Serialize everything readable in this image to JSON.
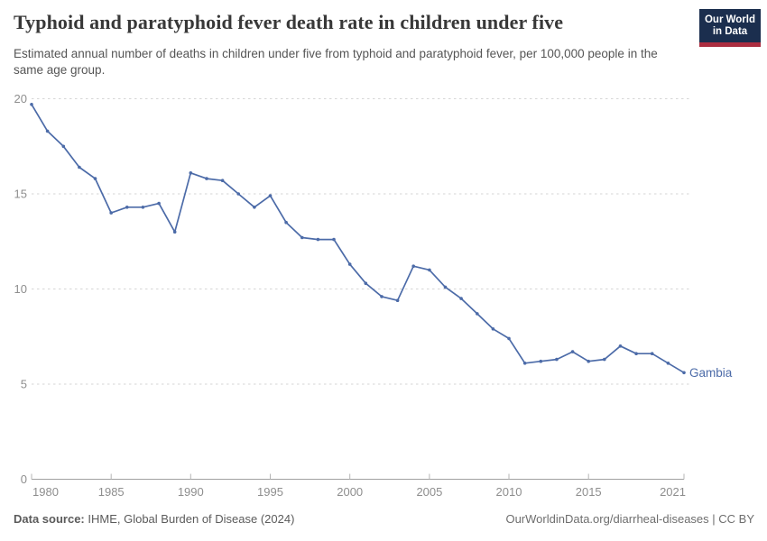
{
  "header": {
    "title": "Typhoid and paratyphoid fever death rate in children under five",
    "subtitle": "Estimated annual number of deaths in children under five from typhoid and paratyphoid fever, per 100,000 people in the same age group.",
    "logo_line1": "Our World",
    "logo_line2": "in Data",
    "logo_bg_color": "#1b2e4e",
    "logo_accent_color": "#ab2d40"
  },
  "chart_data": {
    "type": "line",
    "title": "Typhoid and paratyphoid fever death rate in children under five",
    "entity_label": "Gambia",
    "line_color": "#4c6ba8",
    "axis_text_color": "#8e8e8e",
    "grid_color": "#d6d6d6",
    "axis_line_color": "#a0a0a0",
    "xlim": [
      1980,
      2021
    ],
    "ylim": [
      0,
      20
    ],
    "x_ticks": [
      1980,
      1985,
      1990,
      1995,
      2000,
      2005,
      2010,
      2015,
      2021
    ],
    "y_ticks": [
      0,
      5,
      10,
      15,
      20
    ],
    "grid": "horizontal-dashed",
    "legend_position": "end-of-line",
    "series": [
      {
        "name": "Gambia",
        "x": [
          1980,
          1981,
          1982,
          1983,
          1984,
          1985,
          1986,
          1987,
          1988,
          1989,
          1990,
          1991,
          1992,
          1993,
          1994,
          1995,
          1996,
          1997,
          1998,
          1999,
          2000,
          2001,
          2002,
          2003,
          2004,
          2005,
          2006,
          2007,
          2008,
          2009,
          2010,
          2011,
          2012,
          2013,
          2014,
          2015,
          2016,
          2017,
          2018,
          2019,
          2020,
          2021
        ],
        "values": [
          19.7,
          18.3,
          17.5,
          16.4,
          15.8,
          14.0,
          14.3,
          14.3,
          14.5,
          13.0,
          16.1,
          15.8,
          15.7,
          15.0,
          14.3,
          14.9,
          13.5,
          12.7,
          12.6,
          12.6,
          11.3,
          10.3,
          9.6,
          9.4,
          11.2,
          11.0,
          10.1,
          9.5,
          8.7,
          7.9,
          7.4,
          6.1,
          6.2,
          6.3,
          6.7,
          6.2,
          6.3,
          7.0,
          6.6,
          6.6,
          6.1,
          5.6
        ]
      }
    ]
  },
  "footer": {
    "source_label": "Data source:",
    "source_value": "IHME, Global Burden of Disease (2024)",
    "credit": "OurWorldinData.org/diarrheal-diseases | CC BY"
  }
}
